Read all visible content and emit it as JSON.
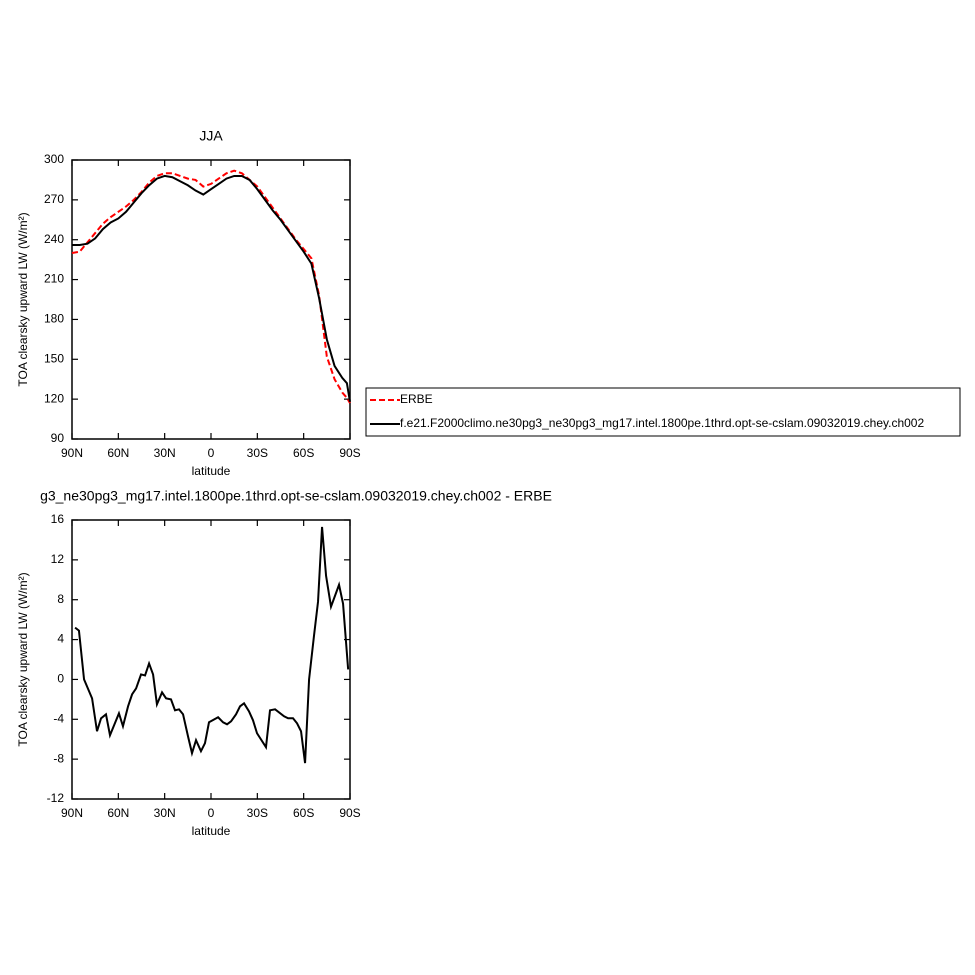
{
  "chart_data": [
    {
      "type": "line",
      "title": "JJA",
      "xlabel": "latitude",
      "ylabel": "TOA clearsky upward LW (W/m²)",
      "x": [
        90,
        85,
        80,
        75,
        70,
        65,
        60,
        55,
        50,
        45,
        40,
        35,
        30,
        25,
        20,
        15,
        10,
        5,
        0,
        -5,
        -10,
        -15,
        -20,
        -25,
        -30,
        -35,
        -40,
        -45,
        -50,
        -55,
        -60,
        -65,
        -70,
        -75,
        -80,
        -85,
        -88,
        -90
      ],
      "series": [
        {
          "name": "ERBE",
          "color": "#ff0000",
          "dash": true,
          "values": [
            230,
            231,
            238,
            245,
            252,
            257,
            261,
            265,
            270,
            276,
            283,
            288,
            290,
            290,
            288,
            286,
            285,
            280,
            282,
            286,
            290,
            292,
            290,
            285,
            280,
            272,
            264,
            256,
            248,
            240,
            233,
            226,
            198,
            152,
            135,
            125,
            121,
            117
          ]
        },
        {
          "name": "f.e21.F2000climo.ne30pg3_ne30pg3_mg17.intel.1800pe.1thrd.opt-se-cslam.09032019.chey.ch002",
          "color": "#000000",
          "dash": false,
          "values": [
            236,
            236,
            237,
            241,
            248,
            253,
            256,
            261,
            268,
            275,
            281,
            286,
            288,
            287,
            284,
            281,
            277,
            274,
            278,
            282,
            286,
            288,
            288,
            285,
            278,
            270,
            262,
            255,
            247,
            239,
            231,
            222,
            196,
            165,
            145,
            136,
            132,
            118
          ]
        }
      ],
      "xlim": [
        90,
        -90
      ],
      "xticks": [
        {
          "value": 90,
          "label": "90N"
        },
        {
          "value": 60,
          "label": "60N"
        },
        {
          "value": 30,
          "label": "30N"
        },
        0,
        {
          "value": -30,
          "label": "30S"
        },
        {
          "value": -60,
          "label": "60S"
        },
        {
          "value": -90,
          "label": "90S"
        }
      ],
      "ylim": [
        90,
        300
      ],
      "yticks": [
        90,
        120,
        150,
        180,
        210,
        240,
        270,
        300
      ]
    },
    {
      "type": "line",
      "title": "g3_ne30pg3_mg17.intel.1800pe.1thrd.opt-se-cslam.09032019.chey.ch002 - ERBE",
      "xlabel": "latitude",
      "ylabel": "TOA clearsky upward LW (W/m²)",
      "x": [
        88,
        85.5,
        82.2,
        77,
        73.8,
        71.2,
        68,
        65.4,
        59.6,
        57,
        53.7,
        51.1,
        48.5,
        45.3,
        42.7,
        40.1,
        37.5,
        35,
        31.7,
        29.1,
        25.9,
        23.3,
        20.7,
        18.1,
        14.9,
        12.3,
        9.7,
        6.5,
        3.9,
        1.3,
        -4.6,
        -7.8,
        -10.4,
        -13,
        -16.2,
        -18.8,
        -21.4,
        -24.6,
        -27.2,
        -29.8,
        -35.6,
        -38.2,
        -41.5,
        -47.3,
        -49.9,
        -53.1,
        -55.7,
        -58.3,
        -60.9,
        -63.5,
        -66.7,
        -69.3,
        -71.9,
        -74.5,
        -77.7,
        -80.3,
        -82.9,
        -85.5,
        -88.8
      ],
      "values": [
        5.2,
        4.9,
        0,
        -1.9,
        -5.2,
        -3.9,
        -3.5,
        -5.6,
        -3.4,
        -4.7,
        -2.7,
        -1.5,
        -0.9,
        0.5,
        0.4,
        1.6,
        0.5,
        -2.5,
        -1.3,
        -1.9,
        -2,
        -3.1,
        -3,
        -3.5,
        -5.7,
        -7.4,
        -6.1,
        -7.2,
        -6.4,
        -4.3,
        -3.8,
        -4.3,
        -4.5,
        -4.2,
        -3.5,
        -2.7,
        -2.4,
        -3.2,
        -4.1,
        -5.4,
        -6.8,
        -3.1,
        -3,
        -3.7,
        -3.9,
        -3.9,
        -4.4,
        -5.2,
        -8.4,
        0,
        4.4,
        7.8,
        15.3,
        10.4,
        7.3,
        8.4,
        9.5,
        7.6,
        1.0
      ],
      "color": "#000000",
      "xlim": [
        90,
        -90
      ],
      "xticks": [
        {
          "value": 90,
          "label": "90N"
        },
        {
          "value": 60,
          "label": "60N"
        },
        {
          "value": 30,
          "label": "30N"
        },
        0,
        {
          "value": -30,
          "label": "30S"
        },
        {
          "value": -60,
          "label": "60S"
        },
        {
          "value": -90,
          "label": "90S"
        }
      ],
      "ylim": [
        -12,
        16
      ],
      "yticks": [
        -12,
        -8,
        -4,
        0,
        4,
        8,
        12,
        16
      ]
    }
  ]
}
